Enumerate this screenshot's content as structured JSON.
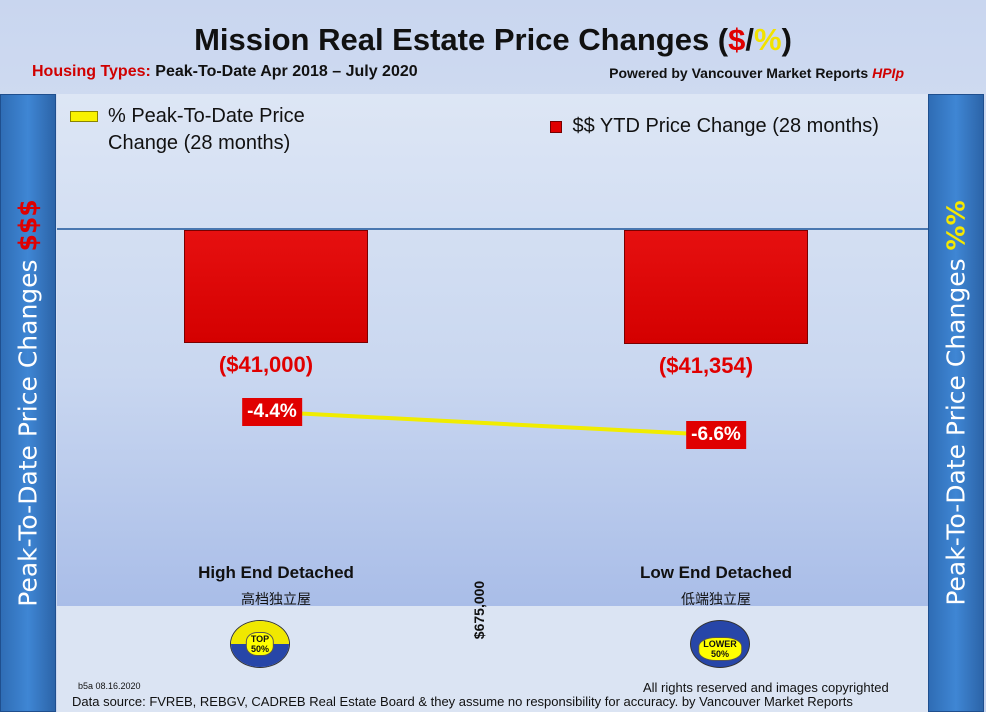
{
  "header": {
    "title_main": "Mission Real Estate Price Changes (",
    "title_dollar": "$",
    "title_slash": "/",
    "title_pct": "%",
    "title_close": ")",
    "subtitle_prefix": "Housing Types:",
    "subtitle_period": "Peak-To-Date Apr 2018 – July 2020",
    "powered_by": "Powered by Vancouver Market Reports",
    "powered_brand": "HPIp"
  },
  "side_axes": {
    "left_text": "Peak-To-Date Price Changes",
    "left_symbol": "$$$",
    "right_text": "Peak-To-Date  Price  Changes",
    "right_symbol": "%%"
  },
  "legend": {
    "pct_label": "% Peak-To-Date Price Change (28 months)",
    "dollar_label": "$$ YTD Price Change (28 months)"
  },
  "chart_data": {
    "type": "bar",
    "categories": [
      "High End Detached",
      "Low End Detached"
    ],
    "categories_zh": [
      "高档独立屋",
      "低端独立屋"
    ],
    "series": [
      {
        "name": "$$ YTD Price Change (28 months)",
        "kind": "bar",
        "values": [
          -41000,
          -41354
        ],
        "labels": [
          "($41,000)",
          "($41,354)"
        ]
      },
      {
        "name": "% Peak-To-Date Price Change (28 months)",
        "kind": "line",
        "values": [
          -4.4,
          -6.6
        ],
        "labels": [
          "-4.4%",
          "-6.6%"
        ]
      }
    ],
    "divider_price": "$675,000",
    "badges": [
      {
        "top": "TOP",
        "bottom": "50%"
      },
      {
        "top": "LOWER",
        "bottom": "50%"
      }
    ],
    "ylim_dollar": [
      -90000,
      0
    ],
    "ylim_pct": [
      -10,
      0
    ]
  },
  "footer": {
    "version": "b5a 08.16.2020",
    "rights": "All rights reserved and  images copyrighted",
    "source": "Data source: FVREB, REBGV, CADREB Real Estate Board & they assume no responsibility for accuracy. by Vancouver Market Reports"
  },
  "colors": {
    "bar": "#e00000",
    "line": "#f8f200",
    "side": "#3478c6"
  }
}
